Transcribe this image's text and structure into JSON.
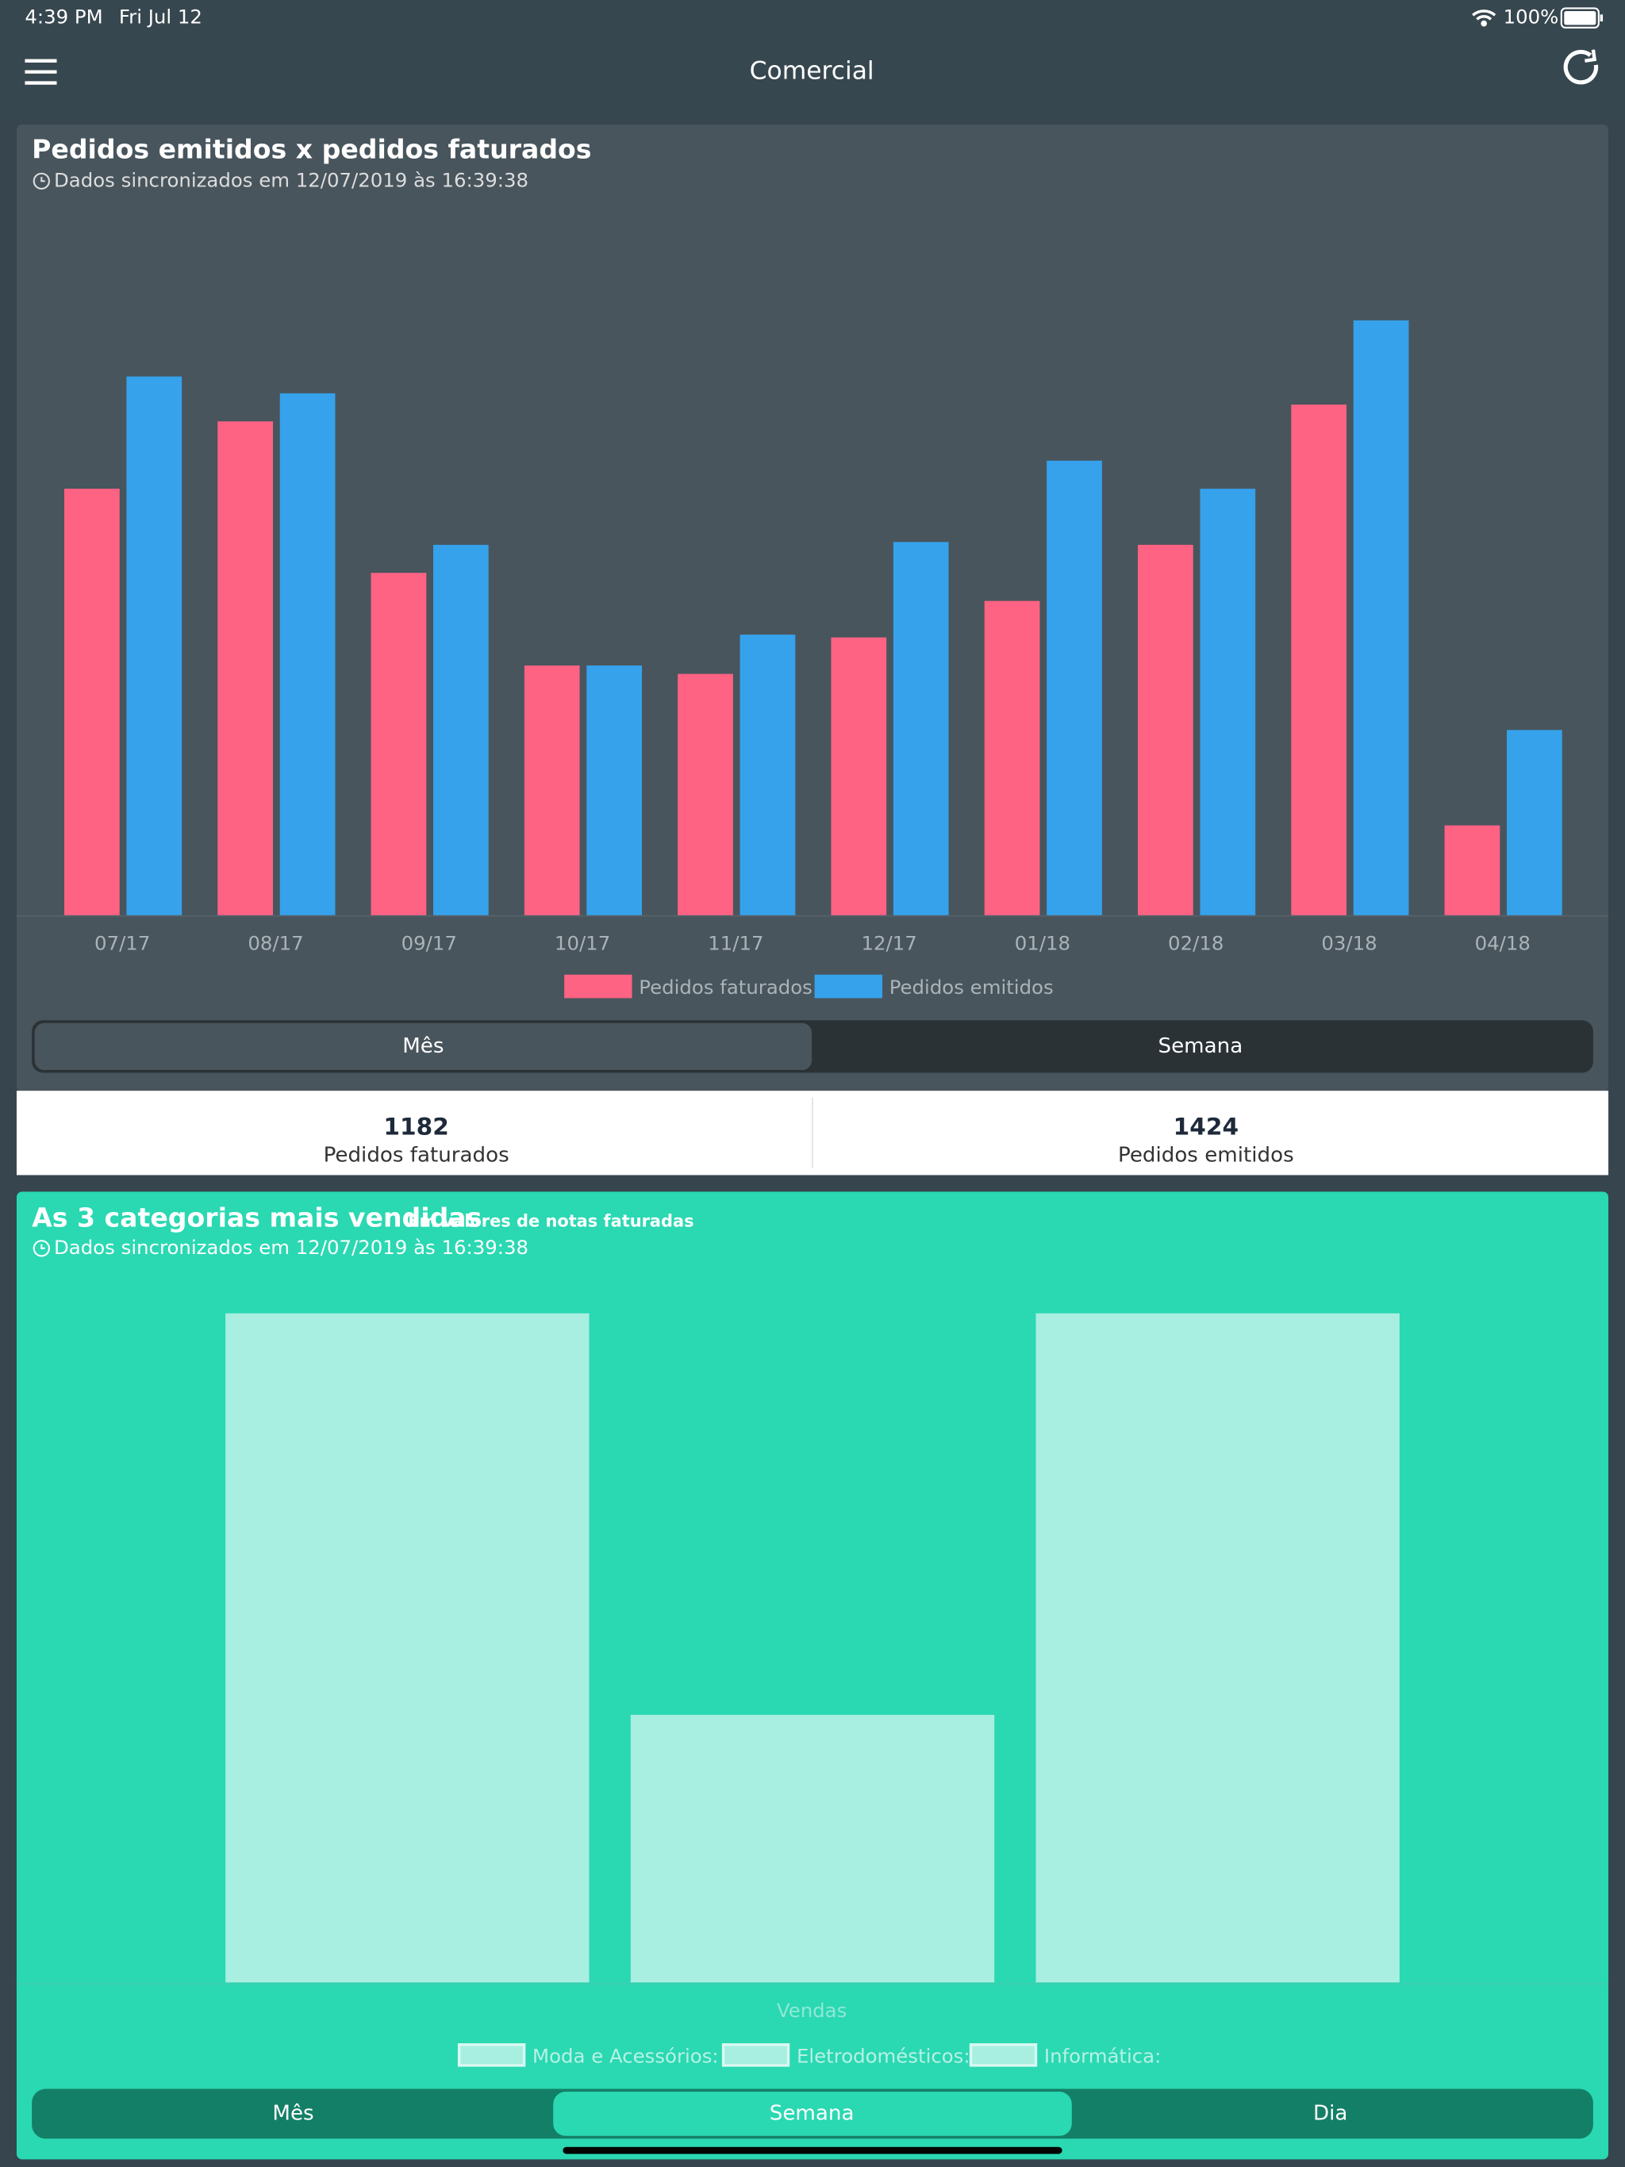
{
  "status_bar": {
    "time": "4:39 PM",
    "date": "Fri Jul 12",
    "battery": "100%"
  },
  "nav": {
    "title": "Comercial"
  },
  "chart_data": [
    {
      "type": "bar",
      "title": "Pedidos emitidos x pedidos faturados",
      "subtitle": "Dados sincronizados em 12/07/2019 às 16:39:38",
      "categories": [
        "07/17",
        "08/17",
        "09/17",
        "10/17",
        "11/17",
        "12/17",
        "01/18",
        "02/18",
        "03/18",
        "04/18"
      ],
      "series": [
        {
          "name": "Pedidos faturados",
          "color": "#ff6384",
          "values": [
            152,
            176,
            122,
            89,
            86,
            99,
            112,
            132,
            182,
            32
          ]
        },
        {
          "name": "Pedidos emitidos",
          "color": "#36a2eb",
          "values": [
            192,
            186,
            132,
            89,
            100,
            133,
            162,
            152,
            212,
            66
          ]
        }
      ],
      "legend": "bottom",
      "grid": false
    },
    {
      "type": "bar",
      "title": "As 3 categorias mais vendidas",
      "subtitle": "Em valores de notas faturadas",
      "sync": "Dados sincronizados em 12/07/2019 às 16:39:38",
      "x_label": "Vendas",
      "categories": [
        null
      ],
      "series": [
        {
          "name": "Moda e Acessórios:",
          "color": "#a8efe1",
          "values": [
            100
          ]
        },
        {
          "name": "Eletrodomésticos:",
          "color": "#a8efe1",
          "values": [
            40
          ]
        },
        {
          "name": "Informática:",
          "color": "#a8efe1",
          "values": [
            100
          ]
        }
      ],
      "legend": "bottom",
      "grid": false
    }
  ],
  "segments_1": [
    "Mês",
    "Semana"
  ],
  "summary": [
    {
      "value": 1182,
      "label": "Pedidos faturados"
    },
    {
      "value": 1424,
      "label": "Pedidos emitidos"
    }
  ],
  "segments_2": [
    "Mês",
    "Semana",
    "Dia"
  ]
}
